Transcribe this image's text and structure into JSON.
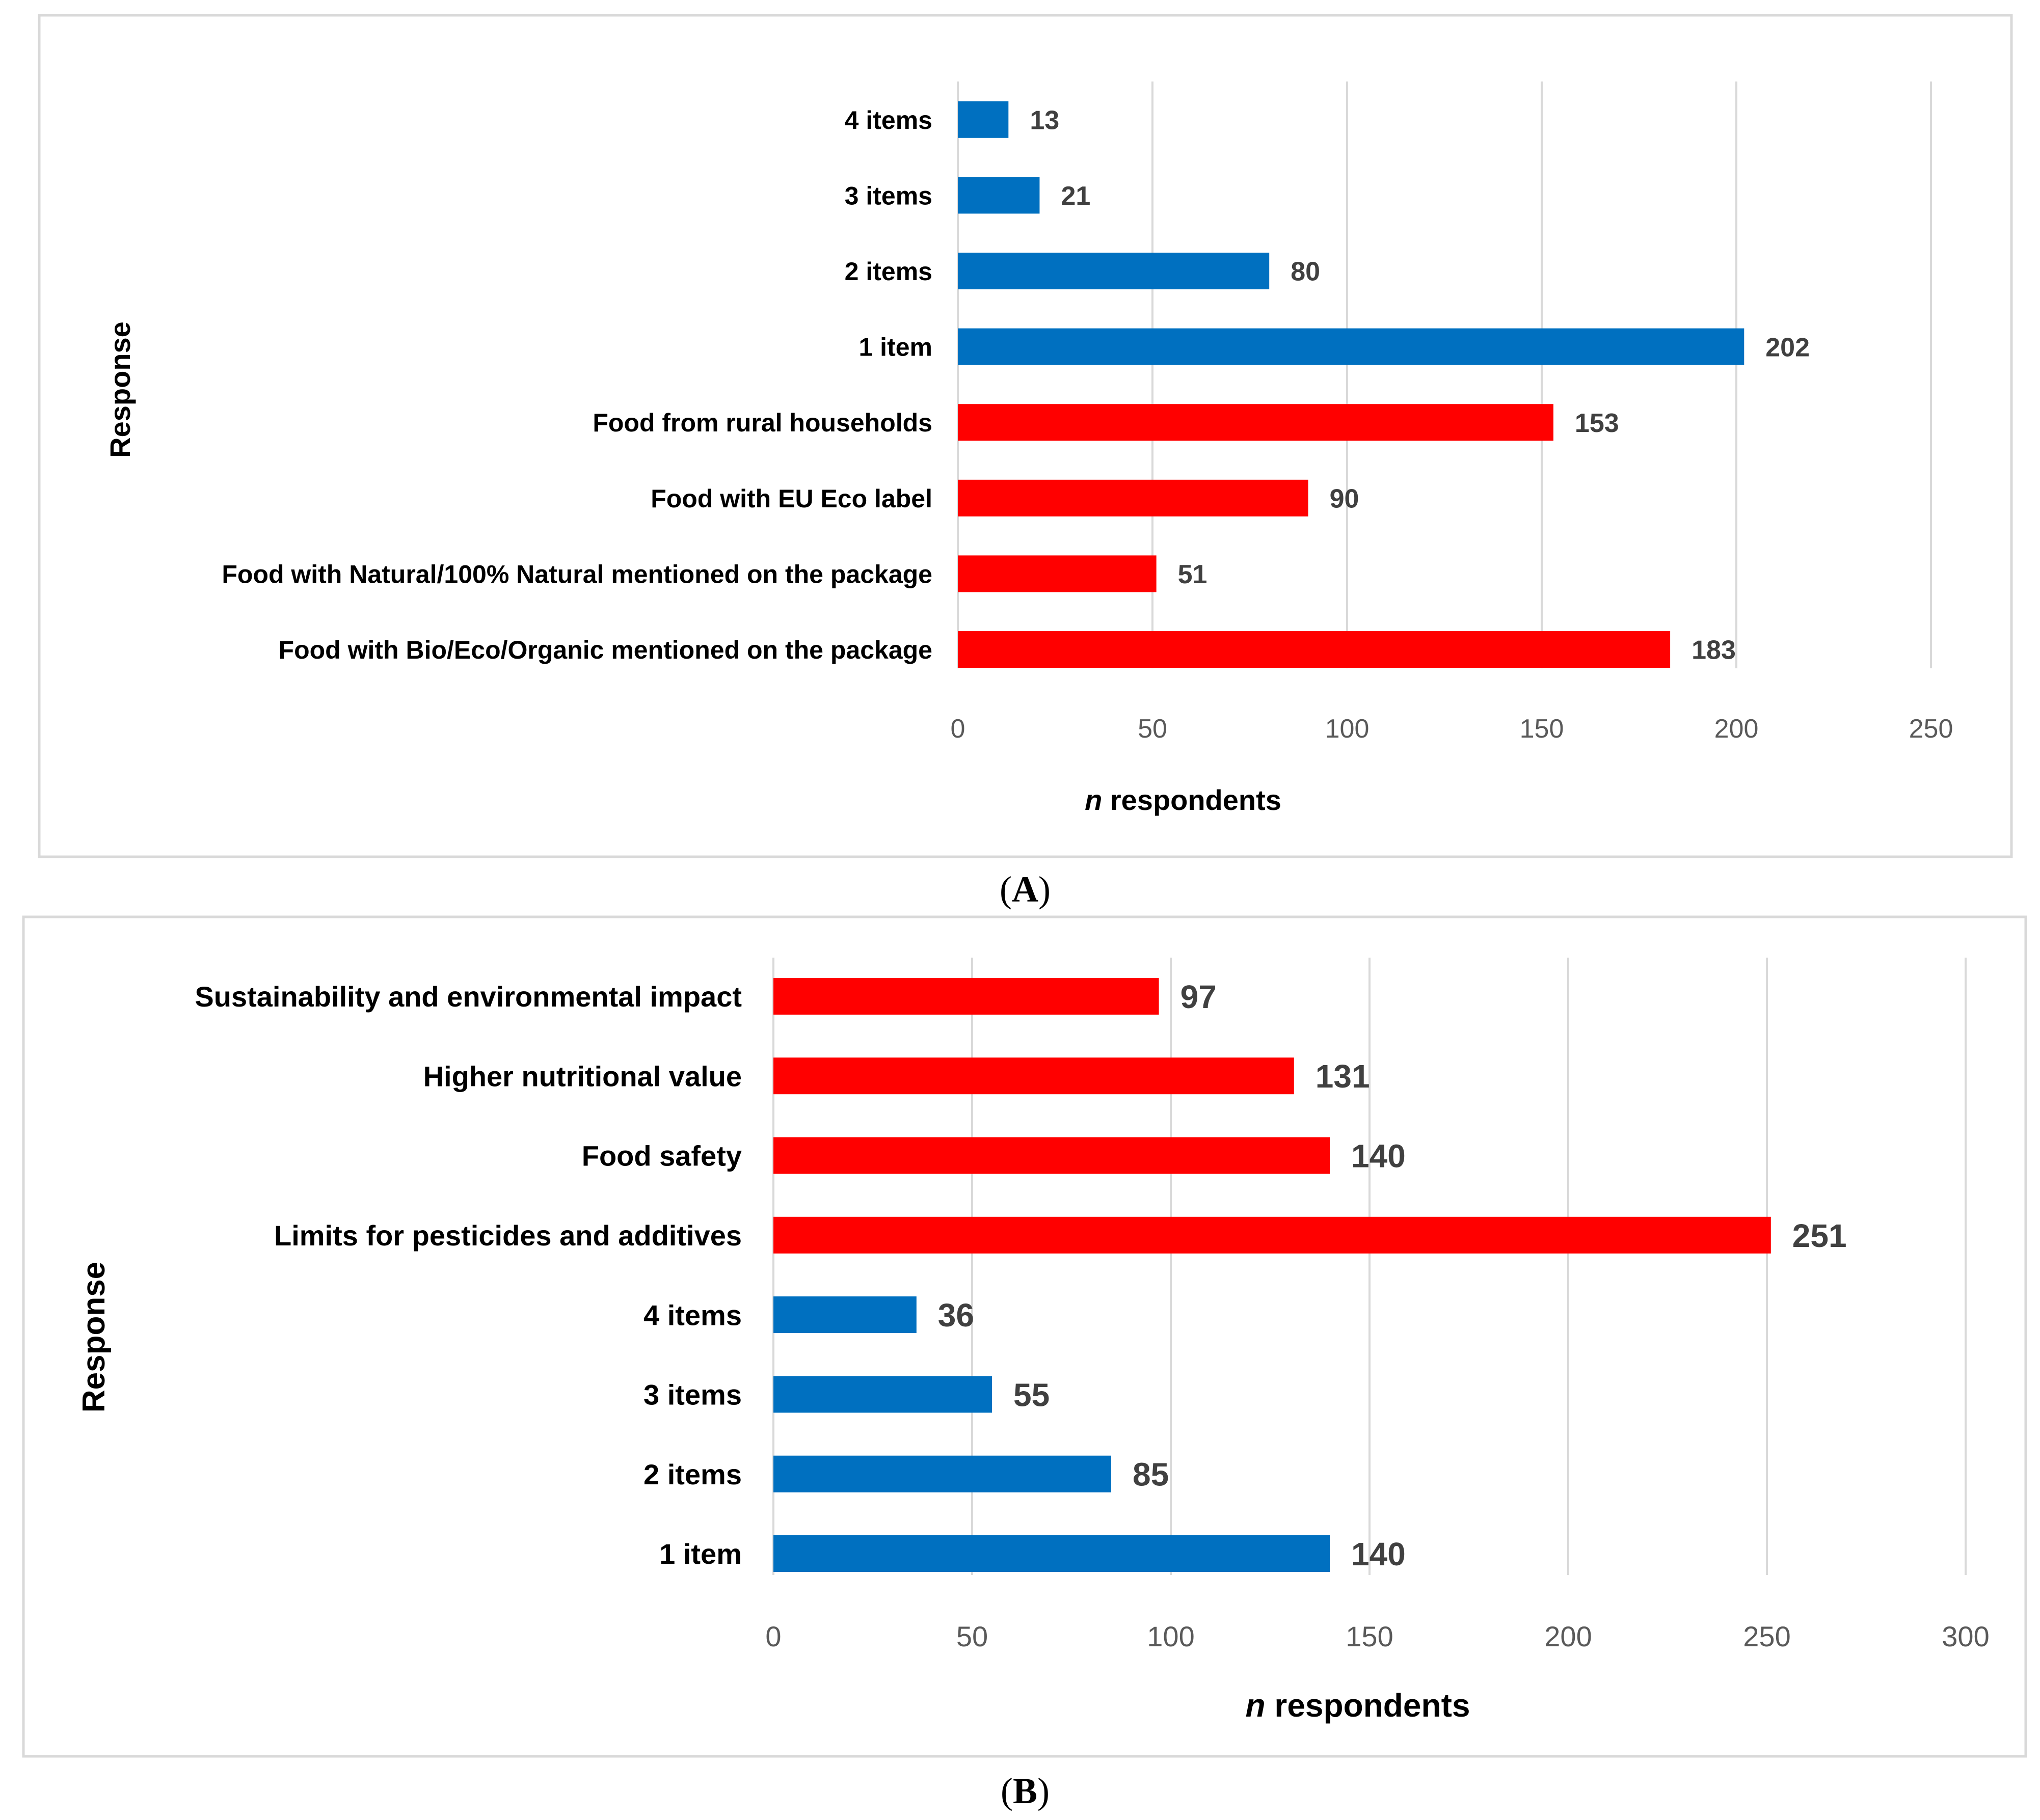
{
  "chart_data": [
    {
      "type": "bar",
      "orientation": "horizontal",
      "caption_letter": "A",
      "ylabel": "Response",
      "xlabel_italic": "n",
      "xlabel_rest": " respondents",
      "categories": [
        "Food with Bio/Eco/Organic mentioned on the package",
        "Food with Natural/100% Natural mentioned on the package",
        "Food with EU Eco label",
        "Food from rural households",
        "1 item",
        "2 items",
        "3 items",
        "4 items"
      ],
      "values": [
        183,
        51,
        90,
        153,
        202,
        80,
        21,
        13
      ],
      "bar_colors": [
        "#ff0000",
        "#ff0000",
        "#ff0000",
        "#ff0000",
        "#0070c0",
        "#0070c0",
        "#0070c0",
        "#0070c0"
      ],
      "xlim": [
        0,
        250
      ],
      "xticks": [
        0,
        50,
        100,
        150,
        200,
        250
      ],
      "grid": true
    },
    {
      "type": "bar",
      "orientation": "horizontal",
      "caption_letter": "B",
      "ylabel": "Response",
      "xlabel_italic": "n",
      "xlabel_rest": " respondents",
      "categories": [
        "1 item",
        "2 items",
        "3 items",
        "4 items",
        "Limits for pesticides and additives",
        "Food safety",
        "Higher nutritional value",
        "Sustainability and environmental impact"
      ],
      "values": [
        140,
        85,
        55,
        36,
        251,
        140,
        131,
        97
      ],
      "bar_colors": [
        "#0070c0",
        "#0070c0",
        "#0070c0",
        "#0070c0",
        "#ff0000",
        "#ff0000",
        "#ff0000",
        "#ff0000"
      ],
      "xlim": [
        0,
        300
      ],
      "xticks": [
        0,
        50,
        100,
        150,
        200,
        250,
        300
      ],
      "grid": true
    }
  ]
}
